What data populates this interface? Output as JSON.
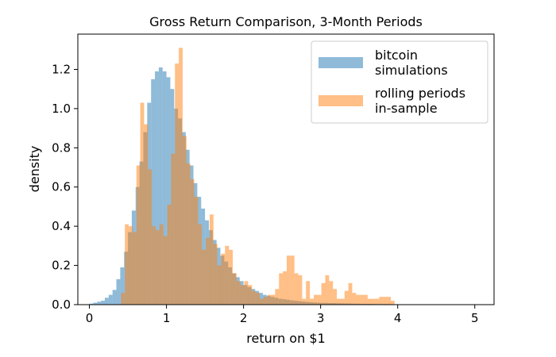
{
  "chart_data": {
    "type": "histogram",
    "title": "Gross Return Comparison, 3-Month Periods",
    "xlabel": "return on $1",
    "ylabel": "density",
    "xlim": [
      -0.15,
      5.25
    ],
    "ylim": [
      0,
      1.38
    ],
    "xticks": [
      0,
      1,
      2,
      3,
      4,
      5
    ],
    "yticks": [
      0.0,
      0.2,
      0.4,
      0.6,
      0.8,
      1.0,
      1.2
    ],
    "ytick_labels": [
      "0.0",
      "0.2",
      "0.4",
      "0.6",
      "0.8",
      "1.0",
      "1.2"
    ],
    "grid": false,
    "legend_position": "top-right",
    "series": [
      {
        "name": "bitcoin\nsimulations",
        "color": "#1f77b4",
        "alpha": 0.5,
        "bins": [
          [
            0.0,
            0.05,
            0.005
          ],
          [
            0.05,
            0.1,
            0.01
          ],
          [
            0.1,
            0.15,
            0.015
          ],
          [
            0.15,
            0.2,
            0.02
          ],
          [
            0.2,
            0.25,
            0.035
          ],
          [
            0.25,
            0.3,
            0.05
          ],
          [
            0.3,
            0.35,
            0.075
          ],
          [
            0.35,
            0.4,
            0.13
          ],
          [
            0.4,
            0.45,
            0.19
          ],
          [
            0.45,
            0.5,
            0.27
          ],
          [
            0.5,
            0.55,
            0.37
          ],
          [
            0.55,
            0.6,
            0.48
          ],
          [
            0.6,
            0.65,
            0.6
          ],
          [
            0.65,
            0.7,
            0.73
          ],
          [
            0.7,
            0.75,
            0.88
          ],
          [
            0.75,
            0.8,
            1.03
          ],
          [
            0.8,
            0.85,
            1.15
          ],
          [
            0.85,
            0.9,
            1.19
          ],
          [
            0.9,
            0.95,
            1.21
          ],
          [
            0.95,
            1.0,
            1.19
          ],
          [
            1.0,
            1.05,
            1.16
          ],
          [
            1.05,
            1.1,
            1.1
          ],
          [
            1.1,
            1.15,
            1.0
          ],
          [
            1.15,
            1.2,
            0.95
          ],
          [
            1.2,
            1.25,
            0.88
          ],
          [
            1.25,
            1.3,
            0.79
          ],
          [
            1.3,
            1.35,
            0.71
          ],
          [
            1.35,
            1.4,
            0.62
          ],
          [
            1.4,
            1.45,
            0.55
          ],
          [
            1.45,
            1.5,
            0.49
          ],
          [
            1.5,
            1.55,
            0.43
          ],
          [
            1.55,
            1.6,
            0.38
          ],
          [
            1.6,
            1.65,
            0.33
          ],
          [
            1.65,
            1.7,
            0.29
          ],
          [
            1.7,
            1.75,
            0.25
          ],
          [
            1.75,
            1.8,
            0.22
          ],
          [
            1.8,
            1.85,
            0.19
          ],
          [
            1.85,
            1.9,
            0.16
          ],
          [
            1.9,
            1.95,
            0.14
          ],
          [
            1.95,
            2.0,
            0.12
          ],
          [
            2.0,
            2.05,
            0.1
          ],
          [
            2.05,
            2.1,
            0.09
          ],
          [
            2.1,
            2.15,
            0.08
          ],
          [
            2.15,
            2.2,
            0.07
          ],
          [
            2.2,
            2.25,
            0.06
          ],
          [
            2.25,
            2.3,
            0.05
          ],
          [
            2.3,
            2.35,
            0.045
          ],
          [
            2.35,
            2.4,
            0.04
          ],
          [
            2.4,
            2.45,
            0.035
          ],
          [
            2.45,
            2.5,
            0.03
          ],
          [
            2.5,
            2.55,
            0.028
          ],
          [
            2.55,
            2.6,
            0.025
          ],
          [
            2.6,
            2.65,
            0.022
          ],
          [
            2.65,
            2.7,
            0.02
          ],
          [
            2.7,
            2.75,
            0.018
          ],
          [
            2.75,
            2.8,
            0.016
          ],
          [
            2.8,
            2.85,
            0.014
          ],
          [
            2.85,
            2.9,
            0.012
          ],
          [
            2.9,
            2.95,
            0.011
          ],
          [
            2.95,
            3.0,
            0.01
          ],
          [
            3.0,
            3.1,
            0.009
          ],
          [
            3.1,
            3.2,
            0.008
          ],
          [
            3.2,
            3.3,
            0.007
          ],
          [
            3.3,
            3.4,
            0.006
          ],
          [
            3.4,
            3.5,
            0.005
          ],
          [
            3.5,
            3.6,
            0.004
          ],
          [
            3.6,
            3.7,
            0.004
          ],
          [
            3.7,
            3.8,
            0.003
          ],
          [
            3.8,
            3.9,
            0.003
          ],
          [
            3.9,
            4.0,
            0.002
          ],
          [
            4.0,
            4.2,
            0.002
          ],
          [
            4.2,
            4.4,
            0.0015
          ],
          [
            4.4,
            4.6,
            0.001
          ],
          [
            4.6,
            4.8,
            0.001
          ],
          [
            4.8,
            5.0,
            0.001
          ]
        ]
      },
      {
        "name": "rolling periods\nin-sample",
        "color": "#ff7f0e",
        "alpha": 0.5,
        "bins": [
          [
            0.41,
            0.46,
            0.06
          ],
          [
            0.46,
            0.51,
            0.41
          ],
          [
            0.51,
            0.56,
            0.4
          ],
          [
            0.56,
            0.61,
            0.37
          ],
          [
            0.61,
            0.66,
            0.71
          ],
          [
            0.66,
            0.71,
            1.03
          ],
          [
            0.71,
            0.76,
            0.92
          ],
          [
            0.76,
            0.81,
            0.69
          ],
          [
            0.81,
            0.86,
            0.4
          ],
          [
            0.86,
            0.91,
            0.38
          ],
          [
            0.91,
            0.96,
            0.41
          ],
          [
            0.96,
            1.01,
            0.35
          ],
          [
            1.01,
            1.06,
            0.51
          ],
          [
            1.06,
            1.11,
            0.77
          ],
          [
            1.11,
            1.16,
            1.23
          ],
          [
            1.16,
            1.21,
            1.31
          ],
          [
            1.21,
            1.26,
            0.86
          ],
          [
            1.26,
            1.31,
            0.72
          ],
          [
            1.31,
            1.36,
            0.64
          ],
          [
            1.36,
            1.41,
            0.55
          ],
          [
            1.41,
            1.46,
            0.41
          ],
          [
            1.46,
            1.51,
            0.28
          ],
          [
            1.51,
            1.56,
            0.34
          ],
          [
            1.56,
            1.61,
            0.46
          ],
          [
            1.61,
            1.66,
            0.31
          ],
          [
            1.66,
            1.71,
            0.2
          ],
          [
            1.71,
            1.76,
            0.26
          ],
          [
            1.76,
            1.81,
            0.3
          ],
          [
            1.81,
            1.86,
            0.28
          ],
          [
            1.86,
            1.91,
            0.16
          ],
          [
            1.91,
            1.96,
            0.12
          ],
          [
            1.96,
            2.01,
            0.1
          ],
          [
            2.01,
            2.06,
            0.12
          ],
          [
            2.06,
            2.11,
            0.1
          ],
          [
            2.11,
            2.16,
            0.07
          ],
          [
            2.16,
            2.21,
            0.06
          ],
          [
            2.21,
            2.26,
            0.03
          ],
          [
            2.26,
            2.31,
            0.04
          ],
          [
            2.31,
            2.36,
            0.05
          ],
          [
            2.36,
            2.41,
            0.05
          ],
          [
            2.41,
            2.46,
            0.08
          ],
          [
            2.46,
            2.51,
            0.16
          ],
          [
            2.51,
            2.56,
            0.17
          ],
          [
            2.56,
            2.61,
            0.25
          ],
          [
            2.61,
            2.66,
            0.25
          ],
          [
            2.66,
            2.71,
            0.16
          ],
          [
            2.71,
            2.76,
            0.15
          ],
          [
            2.76,
            2.81,
            0.03
          ],
          [
            2.81,
            2.86,
            0.12
          ],
          [
            2.86,
            2.91,
            0.03
          ],
          [
            2.91,
            2.96,
            0.05
          ],
          [
            2.96,
            3.01,
            0.05
          ],
          [
            3.01,
            3.06,
            0.11
          ],
          [
            3.06,
            3.11,
            0.15
          ],
          [
            3.11,
            3.16,
            0.12
          ],
          [
            3.16,
            3.21,
            0.08
          ],
          [
            3.21,
            3.26,
            0.03
          ],
          [
            3.26,
            3.31,
            0.03
          ],
          [
            3.31,
            3.36,
            0.07
          ],
          [
            3.36,
            3.41,
            0.11
          ],
          [
            3.41,
            3.46,
            0.06
          ],
          [
            3.46,
            3.51,
            0.05
          ],
          [
            3.51,
            3.56,
            0.05
          ],
          [
            3.56,
            3.61,
            0.05
          ],
          [
            3.61,
            3.66,
            0.03
          ],
          [
            3.66,
            3.71,
            0.03
          ],
          [
            3.71,
            3.76,
            0.03
          ],
          [
            3.76,
            3.81,
            0.04
          ],
          [
            3.81,
            3.86,
            0.04
          ],
          [
            3.86,
            3.91,
            0.04
          ],
          [
            3.91,
            3.96,
            0.02
          ]
        ]
      }
    ]
  }
}
